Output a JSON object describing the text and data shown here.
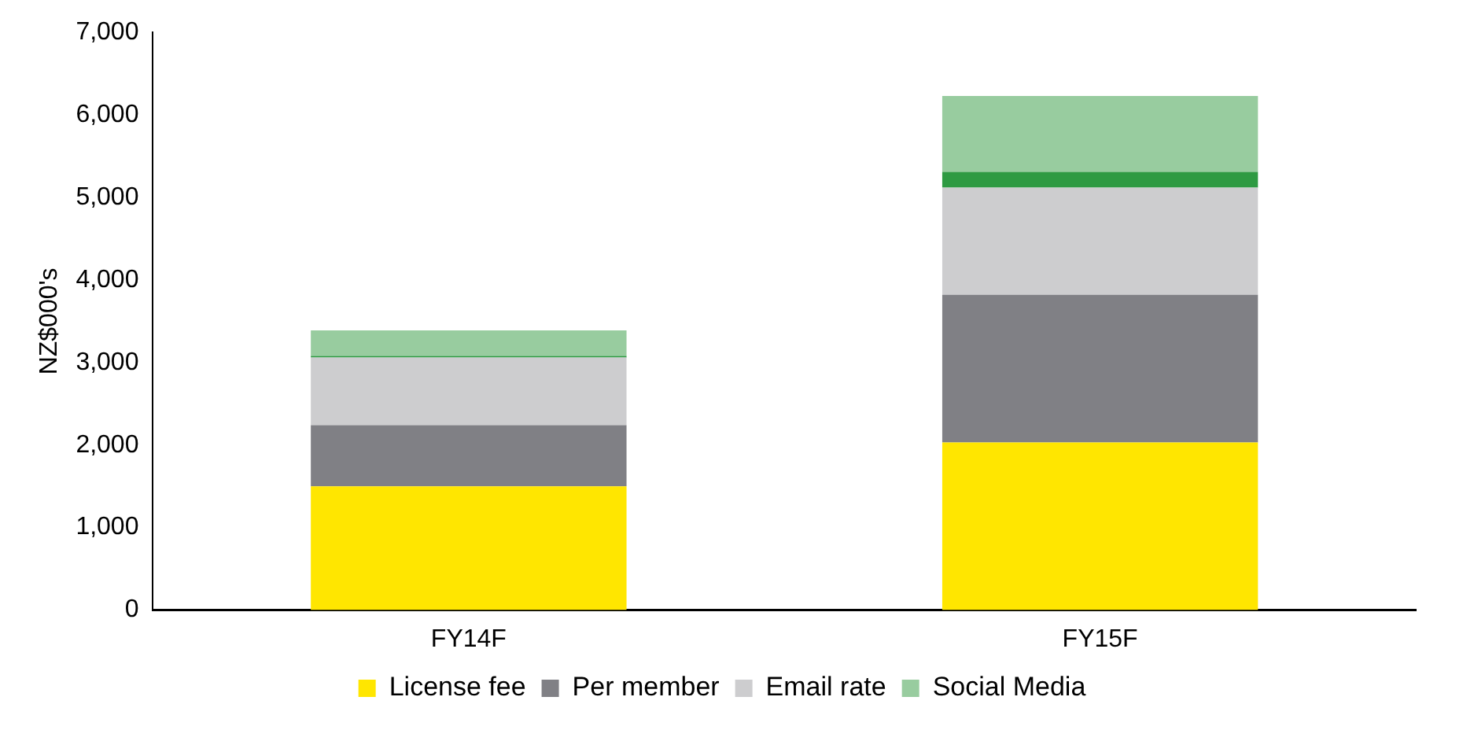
{
  "chart_data": {
    "type": "bar",
    "stacked": true,
    "ylabel": "NZ$000's",
    "categories": [
      "FY14F",
      "FY15F"
    ],
    "ylim": [
      0,
      7000
    ],
    "yticks": [
      {
        "value": 0,
        "label": "0"
      },
      {
        "value": 1000,
        "label": "1,000"
      },
      {
        "value": 2000,
        "label": "2,000"
      },
      {
        "value": 3000,
        "label": "3,000"
      },
      {
        "value": 4000,
        "label": "4,000"
      },
      {
        "value": 5000,
        "label": "5,000"
      },
      {
        "value": 6000,
        "label": "6,000"
      },
      {
        "value": 7000,
        "label": "7,000"
      }
    ],
    "grid": false,
    "legend": "bottom",
    "series": [
      {
        "name": "License fee",
        "color": "#ffe600",
        "values": [
          1500,
          2030
        ]
      },
      {
        "name": "Per member",
        "color": "#808085",
        "values": [
          740,
          1790
        ]
      },
      {
        "name": "Email rate",
        "color": "#cdcdcf",
        "values": [
          820,
          1300
        ]
      },
      {
        "color": "#2e9a42",
        "values": [
          20,
          190
        ]
      },
      {
        "name": "Social Media",
        "color": "#98cc9f",
        "values": [
          310,
          920
        ]
      }
    ]
  }
}
